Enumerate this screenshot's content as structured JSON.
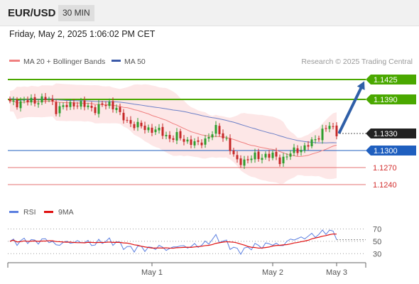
{
  "header": {
    "symbol": "EUR/USD",
    "timeframe": "30 MIN",
    "datetime": "Friday, May 2, 2025 1:06:02 PM CET"
  },
  "legend": {
    "ma20_label": "MA 20 + Bollinger Bands",
    "ma50_label": "MA 50",
    "attribution": "Research © 2025 Trading Central"
  },
  "colors": {
    "up": "#2e9e2e",
    "down": "#c62828",
    "resistance": "#4aa800",
    "current": "#222222",
    "pivot": "#1f5fbf",
    "support": "#e57373",
    "ma20": "#f08080",
    "ma50": "#6b7fc7",
    "band_fill": "#fde3e3",
    "arrow": "#2f5fa8",
    "rsi": "#5b7fe0",
    "rsi_ma": "#e01010"
  },
  "levels": [
    {
      "value": 1.1425,
      "label": "1.1425",
      "kind": "resistance"
    },
    {
      "value": 1.139,
      "label": "1.1390",
      "kind": "resistance"
    },
    {
      "value": 1.133,
      "label": "1.1330",
      "kind": "current"
    },
    {
      "value": 1.13,
      "label": "1.1300",
      "kind": "pivot"
    },
    {
      "value": 1.127,
      "label": "1.1270",
      "kind": "support"
    },
    {
      "value": 1.124,
      "label": "1.1240",
      "kind": "support"
    }
  ],
  "price_axis": {
    "min": 1.1215,
    "max": 1.1445
  },
  "forecast": {
    "from_price": 1.1332,
    "to_price": 1.1422
  },
  "rsi_panel": {
    "rsi_label": "RSI",
    "ma_label": "9MA",
    "ticks": [
      {
        "value": 70,
        "label": "70"
      },
      {
        "value": 50,
        "label": "50"
      },
      {
        "value": 30,
        "label": "30"
      }
    ],
    "range": [
      20,
      82
    ]
  },
  "x_axis": {
    "labels": [
      {
        "label": "May 1",
        "bar": 40
      },
      {
        "label": "May 2",
        "bar": 74
      },
      {
        "label": "May 3",
        "bar": 92
      }
    ]
  }
}
